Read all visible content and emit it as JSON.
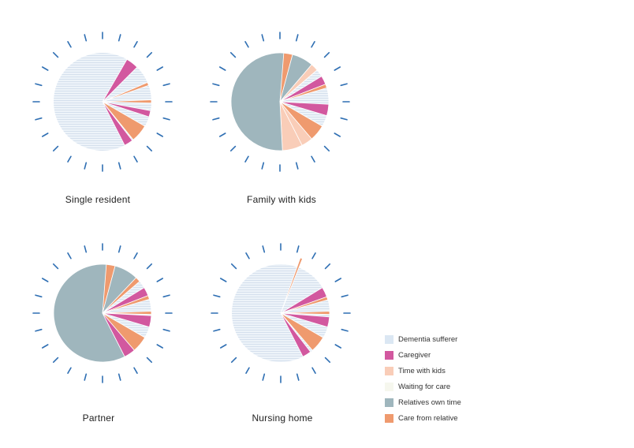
{
  "palette": {
    "dementia": "#dbe7f3",
    "caregiver": "#d2589f",
    "kids": "#f9cdb8",
    "waiting": "#f6f7ee",
    "relatives": "#9fb6bd",
    "care": "#ef9a6e",
    "tick": "#2f6fb3"
  },
  "legend": [
    {
      "key": "dementia",
      "label": "Dementia sufferer"
    },
    {
      "key": "caregiver",
      "label": "Caregiver"
    },
    {
      "key": "kids",
      "label": "Time with kids"
    },
    {
      "key": "waiting",
      "label": "Waiting for care"
    },
    {
      "key": "relatives",
      "label": "Relatives own time"
    },
    {
      "key": "care",
      "label": "Care from relative"
    }
  ],
  "chart_data": [
    {
      "type": "pie",
      "title": "Single resident",
      "slices": [
        {
          "cat": "dementia",
          "start": 0,
          "end": 24,
          "radius": 1.0
        },
        {
          "cat": "caregiver",
          "start": 2,
          "end": 3,
          "radius": 1.0
        },
        {
          "cat": "care",
          "start": 4.45,
          "end": 4.7,
          "radius": 1.0
        },
        {
          "cat": "care",
          "start": 5.85,
          "end": 6.1,
          "radius": 1.0
        },
        {
          "cat": "caregiver",
          "start": 6.7,
          "end": 7.2,
          "radius": 1.0
        },
        {
          "cat": "care",
          "start": 8.0,
          "end": 9.4,
          "radius": 1.0
        },
        {
          "cat": "caregiver",
          "start": 9.5,
          "end": 10.2,
          "radius": 1.0
        }
      ]
    },
    {
      "type": "pie",
      "title": "Family with kids",
      "slices": [
        {
          "cat": "dementia",
          "start": 3.3,
          "end": 8.0,
          "radius": 1.0
        },
        {
          "cat": "kids",
          "start": 10.2,
          "end": 11.8,
          "radius": 1.0
        },
        {
          "cat": "relatives",
          "start": 11.8,
          "end": 24.9,
          "radius": 1.0
        },
        {
          "cat": "care",
          "start": 0.3,
          "end": 1.0,
          "radius": 1.0
        },
        {
          "cat": "relatives",
          "start": 1.0,
          "end": 2.7,
          "radius": 1.0
        },
        {
          "cat": "kids",
          "start": 2.7,
          "end": 3.3,
          "radius": 1.0
        },
        {
          "cat": "caregiver",
          "start": 3.9,
          "end": 4.6,
          "radius": 1.0
        },
        {
          "cat": "care",
          "start": 4.6,
          "end": 4.9,
          "radius": 1.0
        },
        {
          "cat": "caregiver",
          "start": 6.2,
          "end": 7.1,
          "radius": 1.0
        },
        {
          "cat": "care",
          "start": 8.0,
          "end": 9.3,
          "radius": 1.0
        },
        {
          "cat": "kids",
          "start": 9.3,
          "end": 10.2,
          "radius": 1.0
        }
      ]
    },
    {
      "type": "pie",
      "title": "Partner",
      "slices": [
        {
          "cat": "dementia",
          "start": 2.9,
          "end": 8.0,
          "radius": 1.0
        },
        {
          "cat": "relatives",
          "start": 10.2,
          "end": 24.9,
          "radius": 1.0
        },
        {
          "cat": "care",
          "start": 0.3,
          "end": 1.0,
          "radius": 1.0
        },
        {
          "cat": "relatives",
          "start": 1.0,
          "end": 2.9,
          "radius": 1.0
        },
        {
          "cat": "care",
          "start": 2.9,
          "end": 3.3,
          "radius": 1.0
        },
        {
          "cat": "caregiver",
          "start": 3.9,
          "end": 4.6,
          "radius": 1.0
        },
        {
          "cat": "care",
          "start": 4.6,
          "end": 4.9,
          "radius": 1.0
        },
        {
          "cat": "care",
          "start": 5.85,
          "end": 6.1,
          "radius": 1.0
        },
        {
          "cat": "caregiver",
          "start": 6.2,
          "end": 7.1,
          "radius": 1.0
        },
        {
          "cat": "care",
          "start": 8.0,
          "end": 9.3,
          "radius": 1.0
        },
        {
          "cat": "caregiver",
          "start": 9.3,
          "end": 10.2,
          "radius": 1.0
        }
      ]
    },
    {
      "type": "pie",
      "title": "Nursing home",
      "slices": [
        {
          "cat": "dementia",
          "start": 0,
          "end": 24,
          "radius": 1.0
        },
        {
          "cat": "care",
          "start": 1.3,
          "end": 1.45,
          "radius": 1.2
        },
        {
          "cat": "caregiver",
          "start": 3.9,
          "end": 4.7,
          "radius": 1.0
        },
        {
          "cat": "care",
          "start": 4.7,
          "end": 4.95,
          "radius": 1.0
        },
        {
          "cat": "care",
          "start": 5.85,
          "end": 6.1,
          "radius": 1.0
        },
        {
          "cat": "caregiver",
          "start": 6.3,
          "end": 7.1,
          "radius": 1.0
        },
        {
          "cat": "care",
          "start": 8.0,
          "end": 9.3,
          "radius": 1.0
        },
        {
          "cat": "caregiver",
          "start": 9.5,
          "end": 10.2,
          "radius": 1.0
        }
      ]
    }
  ]
}
